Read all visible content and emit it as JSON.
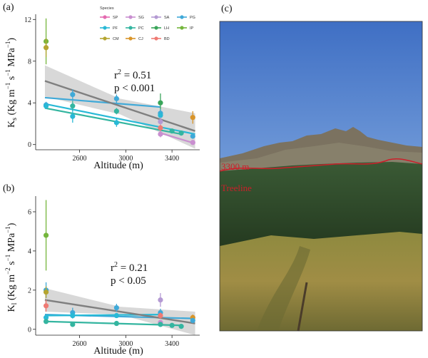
{
  "panel_labels": {
    "a": "(a)",
    "b": "(b)",
    "c": "(c)"
  },
  "legend": {
    "title": "Species",
    "items": [
      {
        "code": "SP",
        "color": "#e46ab0"
      },
      {
        "code": "SG",
        "color": "#c98fd0"
      },
      {
        "code": "SA",
        "color": "#b49ad3"
      },
      {
        "code": "PG",
        "color": "#3fa9d8"
      },
      {
        "code": "PF",
        "color": "#29b9d6"
      },
      {
        "code": "PC",
        "color": "#34b5a0"
      },
      {
        "code": "LH",
        "color": "#3aa55a"
      },
      {
        "code": "IP",
        "color": "#74b63c"
      },
      {
        "code": "CM",
        "color": "#b5a531"
      },
      {
        "code": "CJ",
        "color": "#d9952a"
      },
      {
        "code": "BD",
        "color": "#ef7a73"
      }
    ]
  },
  "photo": {
    "altitude_label": "3300 m",
    "treeline_label": "Treeline",
    "line_color": "#cc1f2a"
  },
  "chart_data": [
    {
      "id": "a",
      "type": "scatter",
      "xlabel": "Altitude (m)",
      "ylabel_main": "K",
      "ylabel_sub": "s",
      "ylabel_units": " (Kg m",
      "ylabel_tail": " s",
      "ylabel_end": " MPa",
      "ylabel_exp1": "−1",
      "ylabel_exp2": "−1",
      "ylabel_exp3": "−1",
      "ylabel_close": ")",
      "xlim": [
        2220,
        3640
      ],
      "ylim": [
        -0.5,
        12.5
      ],
      "xticks": [
        2600,
        3000,
        3400
      ],
      "xticklabels": [
        "2600",
        "3000",
        "3400"
      ],
      "yticks": [
        0,
        4,
        8,
        12
      ],
      "yticklabels": [
        "0",
        "4",
        "8",
        "12"
      ],
      "stats": {
        "r2_base": "r",
        "r2_exp": "2",
        "r2_val": " = 0.51",
        "p": "p < 0.001"
      },
      "points": [
        {
          "x": 2310,
          "y": 9.9,
          "err": 2.2,
          "color": "#74b63c"
        },
        {
          "x": 2310,
          "y": 9.3,
          "err": 0.9,
          "color": "#b5a531"
        },
        {
          "x": 2310,
          "y": 3.8,
          "err": 0.3,
          "color": "#3fa9d8"
        },
        {
          "x": 2310,
          "y": 3.7,
          "err": 0.3,
          "color": "#29b9d6"
        },
        {
          "x": 2540,
          "y": 4.8,
          "err": 0.5,
          "color": "#3fa9d8"
        },
        {
          "x": 2540,
          "y": 3.7,
          "err": 0.5,
          "color": "#34b5a0"
        },
        {
          "x": 2540,
          "y": 2.7,
          "err": 0.6,
          "color": "#29b9d6"
        },
        {
          "x": 2920,
          "y": 4.4,
          "err": 0.4,
          "color": "#3fa9d8"
        },
        {
          "x": 2920,
          "y": 3.2,
          "err": 0.3,
          "color": "#34b5a0"
        },
        {
          "x": 2920,
          "y": 2.1,
          "err": 0.4,
          "color": "#29b9d6"
        },
        {
          "x": 3300,
          "y": 4.0,
          "err": 0.9,
          "color": "#3aa55a"
        },
        {
          "x": 3300,
          "y": 3.0,
          "err": 0.4,
          "color": "#3fa9d8"
        },
        {
          "x": 3300,
          "y": 2.8,
          "err": 0.3,
          "color": "#29b9d6"
        },
        {
          "x": 3300,
          "y": 2.2,
          "err": 0.4,
          "color": "#b49ad3"
        },
        {
          "x": 3300,
          "y": 1.6,
          "err": 0.3,
          "color": "#ef7a73"
        },
        {
          "x": 3300,
          "y": 1.0,
          "err": 0.3,
          "color": "#c98fd0"
        },
        {
          "x": 3400,
          "y": 1.3,
          "err": 0.2,
          "color": "#34b5a0"
        },
        {
          "x": 3480,
          "y": 1.1,
          "err": 0.2,
          "color": "#34b5a0"
        },
        {
          "x": 3580,
          "y": 2.6,
          "err": 0.6,
          "color": "#d9952a"
        },
        {
          "x": 3580,
          "y": 0.8,
          "err": 0.2,
          "color": "#3fa9d8"
        },
        {
          "x": 3580,
          "y": 0.2,
          "err": 0.2,
          "color": "#c98fd0"
        }
      ],
      "lines": [
        {
          "x1": 2300,
          "y1": 4.5,
          "x2": 3300,
          "y2": 3.6,
          "color": "#3fa9d8"
        },
        {
          "x1": 2300,
          "y1": 3.9,
          "x2": 3600,
          "y2": 1.0,
          "color": "#29b9d6"
        },
        {
          "x1": 2300,
          "y1": 3.5,
          "x2": 3480,
          "y2": 1.0,
          "color": "#34b5a0"
        },
        {
          "x1": 3300,
          "y1": 1.1,
          "x2": 3600,
          "y2": 0.1,
          "color": "#c98fd0"
        }
      ],
      "fit": {
        "x1": 2300,
        "y1": 6.1,
        "x2": 3600,
        "y2": 1.3,
        "color": "#7f7f7f",
        "band": [
          [
            2300,
            7.6,
            4.6
          ],
          [
            2950,
            4.4,
            2.9
          ],
          [
            3600,
            3.0,
            -0.4
          ]
        ]
      }
    },
    {
      "id": "b",
      "type": "scatter",
      "xlabel": "Altitude (m)",
      "ylabel_main": "K",
      "ylabel_sub": "l",
      "ylabel_units": " (Kg m",
      "ylabel_tail": " s",
      "ylabel_end": " MPa",
      "ylabel_exp1": "−2",
      "ylabel_exp2": "−1",
      "ylabel_exp3": "−1",
      "ylabel_close": ")",
      "xlim": [
        2220,
        3640
      ],
      "ylim": [
        -0.3,
        6.8
      ],
      "xticks": [
        2600,
        3000,
        3400
      ],
      "xticklabels": [
        "2600",
        "3000",
        "3400"
      ],
      "yticks": [
        0,
        2,
        4,
        6
      ],
      "yticklabels": [
        "0",
        "2",
        "4",
        "6"
      ],
      "stats": {
        "r2_base": "r",
        "r2_exp": "2",
        "r2_val": " = 0.21",
        "p": "p < 0.05"
      },
      "points": [
        {
          "x": 2310,
          "y": 4.8,
          "err": 1.8,
          "color": "#74b63c"
        },
        {
          "x": 2310,
          "y": 2.0,
          "err": 0.4,
          "color": "#3fa9d8"
        },
        {
          "x": 2310,
          "y": 1.9,
          "err": 0.3,
          "color": "#b5a531"
        },
        {
          "x": 2310,
          "y": 1.2,
          "err": 0.3,
          "color": "#ef7a73"
        },
        {
          "x": 2310,
          "y": 0.6,
          "err": 0.1,
          "color": "#29b9d6"
        },
        {
          "x": 2310,
          "y": 0.4,
          "err": 0.1,
          "color": "#34b5a0"
        },
        {
          "x": 2540,
          "y": 0.85,
          "err": 0.25,
          "color": "#3fa9d8"
        },
        {
          "x": 2540,
          "y": 0.7,
          "err": 0.15,
          "color": "#29b9d6"
        },
        {
          "x": 2540,
          "y": 0.25,
          "err": 0.1,
          "color": "#34b5a0"
        },
        {
          "x": 2920,
          "y": 1.1,
          "err": 0.2,
          "color": "#3fa9d8"
        },
        {
          "x": 2920,
          "y": 0.7,
          "err": 0.1,
          "color": "#29b9d6"
        },
        {
          "x": 2920,
          "y": 0.3,
          "err": 0.1,
          "color": "#34b5a0"
        },
        {
          "x": 3300,
          "y": 1.5,
          "err": 0.35,
          "color": "#b49ad3"
        },
        {
          "x": 3300,
          "y": 0.85,
          "err": 0.2,
          "color": "#3fa9d8"
        },
        {
          "x": 3300,
          "y": 0.7,
          "err": 0.15,
          "color": "#ef7a73"
        },
        {
          "x": 3300,
          "y": 0.35,
          "err": 0.1,
          "color": "#c98fd0"
        },
        {
          "x": 3300,
          "y": 0.25,
          "err": 0.1,
          "color": "#34b5a0"
        },
        {
          "x": 3400,
          "y": 0.2,
          "err": 0.05,
          "color": "#34b5a0"
        },
        {
          "x": 3480,
          "y": 0.15,
          "err": 0.05,
          "color": "#34b5a0"
        },
        {
          "x": 3580,
          "y": 0.6,
          "err": 0.15,
          "color": "#d9952a"
        },
        {
          "x": 3580,
          "y": 0.45,
          "err": 0.1,
          "color": "#3fa9d8"
        }
      ],
      "lines": [
        {
          "x1": 2300,
          "y1": 0.75,
          "x2": 3600,
          "y2": 0.55,
          "color": "#3fa9d8"
        },
        {
          "x1": 2300,
          "y1": 0.7,
          "x2": 3300,
          "y2": 0.75,
          "color": "#29b9d6"
        },
        {
          "x1": 2300,
          "y1": 0.4,
          "x2": 3480,
          "y2": 0.2,
          "color": "#34b5a0"
        }
      ],
      "fit": {
        "x1": 2300,
        "y1": 1.5,
        "x2": 3600,
        "y2": 0.3,
        "color": "#7f7f7f",
        "band": [
          [
            2300,
            2.1,
            0.9
          ],
          [
            2950,
            1.15,
            0.75
          ],
          [
            3600,
            0.9,
            -0.3
          ]
        ]
      }
    }
  ]
}
